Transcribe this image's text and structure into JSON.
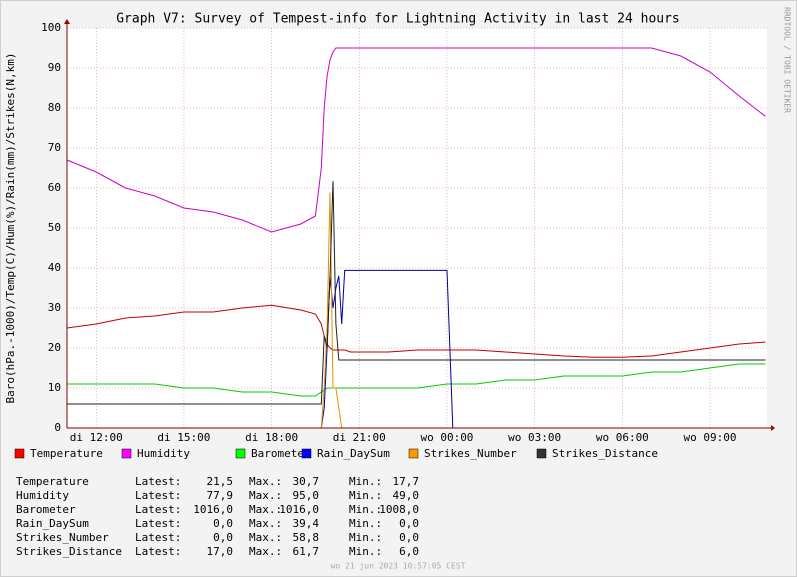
{
  "chart_data": {
    "type": "line",
    "title": "Graph V7: Survey of Tempest-info for Lightning Activity in last 24 hours",
    "y_label": "Baro(hPa.-1000)/Temp(C)/Hum(%)/Rain(mm)/Strikes(N,km)",
    "side_label": "RRDTOOL / TOBI OETIKER",
    "footer": "wo 21 jun 2023 10:57:05 CEST",
    "x": [
      11,
      12,
      13,
      14,
      15,
      16,
      17,
      18,
      19,
      19.5,
      19.7,
      19.8,
      19.9,
      20.0,
      20.1,
      20.2,
      20.3,
      20.4,
      20.5,
      20.7,
      21,
      22,
      23,
      24,
      24.2,
      25,
      26,
      27,
      28,
      29,
      30,
      31,
      32,
      33,
      34,
      34.9
    ],
    "xlim": [
      11,
      34.95
    ],
    "xticks": [
      {
        "value": 12,
        "label": "di 12:00"
      },
      {
        "value": 15,
        "label": "di 15:00"
      },
      {
        "value": 18,
        "label": "di 18:00"
      },
      {
        "value": 21,
        "label": "di 21:00"
      },
      {
        "value": 24,
        "label": "wo 00:00"
      },
      {
        "value": 27,
        "label": "wo 03:00"
      },
      {
        "value": 30,
        "label": "wo 06:00"
      },
      {
        "value": 33,
        "label": "wo 09:00"
      }
    ],
    "ylim": [
      0,
      100
    ],
    "yticks": [
      0,
      10,
      20,
      30,
      40,
      50,
      60,
      70,
      80,
      90,
      100
    ],
    "grid": true,
    "series": [
      {
        "name": "Temperature",
        "color": "#c00000",
        "legend_color": "#ff0000",
        "values": [
          25,
          26,
          27.5,
          28,
          29,
          29,
          30,
          30.7,
          29.5,
          28.5,
          26,
          23,
          21,
          20,
          19.5,
          19.5,
          19.5,
          19.5,
          19.5,
          19,
          19,
          19,
          19.5,
          19.5,
          19.5,
          19.5,
          19,
          18.5,
          18,
          17.7,
          17.7,
          18,
          19,
          20,
          21,
          21.5
        ]
      },
      {
        "name": "Humidity",
        "color": "#cc00cc",
        "legend_color": "#ff00ff",
        "values": [
          67,
          64,
          60,
          58,
          55,
          54,
          52,
          49,
          51,
          53,
          65,
          80,
          88,
          92,
          94,
          95,
          95,
          95,
          95,
          95,
          95,
          95,
          95,
          95,
          95,
          95,
          95,
          95,
          95,
          95,
          95,
          95,
          93,
          89,
          83,
          77.9
        ]
      },
      {
        "name": "Barometer",
        "color": "#00cc00",
        "legend_color": "#00ff00",
        "values": [
          11,
          11,
          11,
          11,
          10,
          10,
          9,
          9,
          8,
          8,
          9,
          9.5,
          10,
          10,
          10,
          10,
          10,
          10,
          10,
          10,
          10,
          10,
          10,
          11,
          11,
          11,
          12,
          12,
          13,
          13,
          13,
          14,
          14,
          15,
          16,
          16
        ]
      },
      {
        "name": "Rain_DaySum",
        "color": "#0000a0",
        "legend_color": "#0000ff",
        "values": [
          0,
          0,
          0,
          0,
          0,
          0,
          0,
          0,
          0,
          0,
          0,
          5,
          20,
          38,
          30,
          35,
          38,
          26,
          39.4,
          39.4,
          39.4,
          39.4,
          39.4,
          39.4,
          0,
          0,
          0,
          0,
          0,
          0,
          0,
          0,
          0,
          0,
          0,
          0
        ]
      },
      {
        "name": "Strikes_Number",
        "color": "#e09000",
        "legend_color": "#ff9900",
        "values": [
          0,
          0,
          0,
          0,
          0,
          0,
          0,
          0,
          0,
          0,
          0,
          10,
          25,
          58.8,
          10,
          10,
          5,
          0,
          0,
          0,
          0,
          0,
          0,
          0,
          0,
          0,
          0,
          0,
          0,
          0,
          0,
          0,
          0,
          0,
          0,
          0
        ]
      },
      {
        "name": "Strikes_Distance",
        "color": "#202020",
        "legend_color": "#333333",
        "values": [
          6,
          6,
          6,
          6,
          6,
          6,
          6,
          6,
          6,
          6,
          6,
          23,
          20,
          38,
          61.7,
          26,
          17,
          17,
          17,
          17,
          17,
          17,
          17,
          17,
          17,
          17,
          17,
          17,
          17,
          17,
          17,
          17,
          17,
          17,
          17,
          17
        ]
      }
    ],
    "stats_labels": [
      "Latest:",
      "Max.:",
      "Min.:"
    ],
    "stats": [
      [
        "21,5",
        "30,7",
        "17,7"
      ],
      [
        "77,9",
        "95,0",
        "49,0"
      ],
      [
        "1016,0",
        "1016,0",
        "1008,0"
      ],
      [
        "0,0",
        "39,4",
        "0,0"
      ],
      [
        "0,0",
        "58,8",
        "0,0"
      ],
      [
        "17,0",
        "61,7",
        "6,0"
      ]
    ]
  }
}
